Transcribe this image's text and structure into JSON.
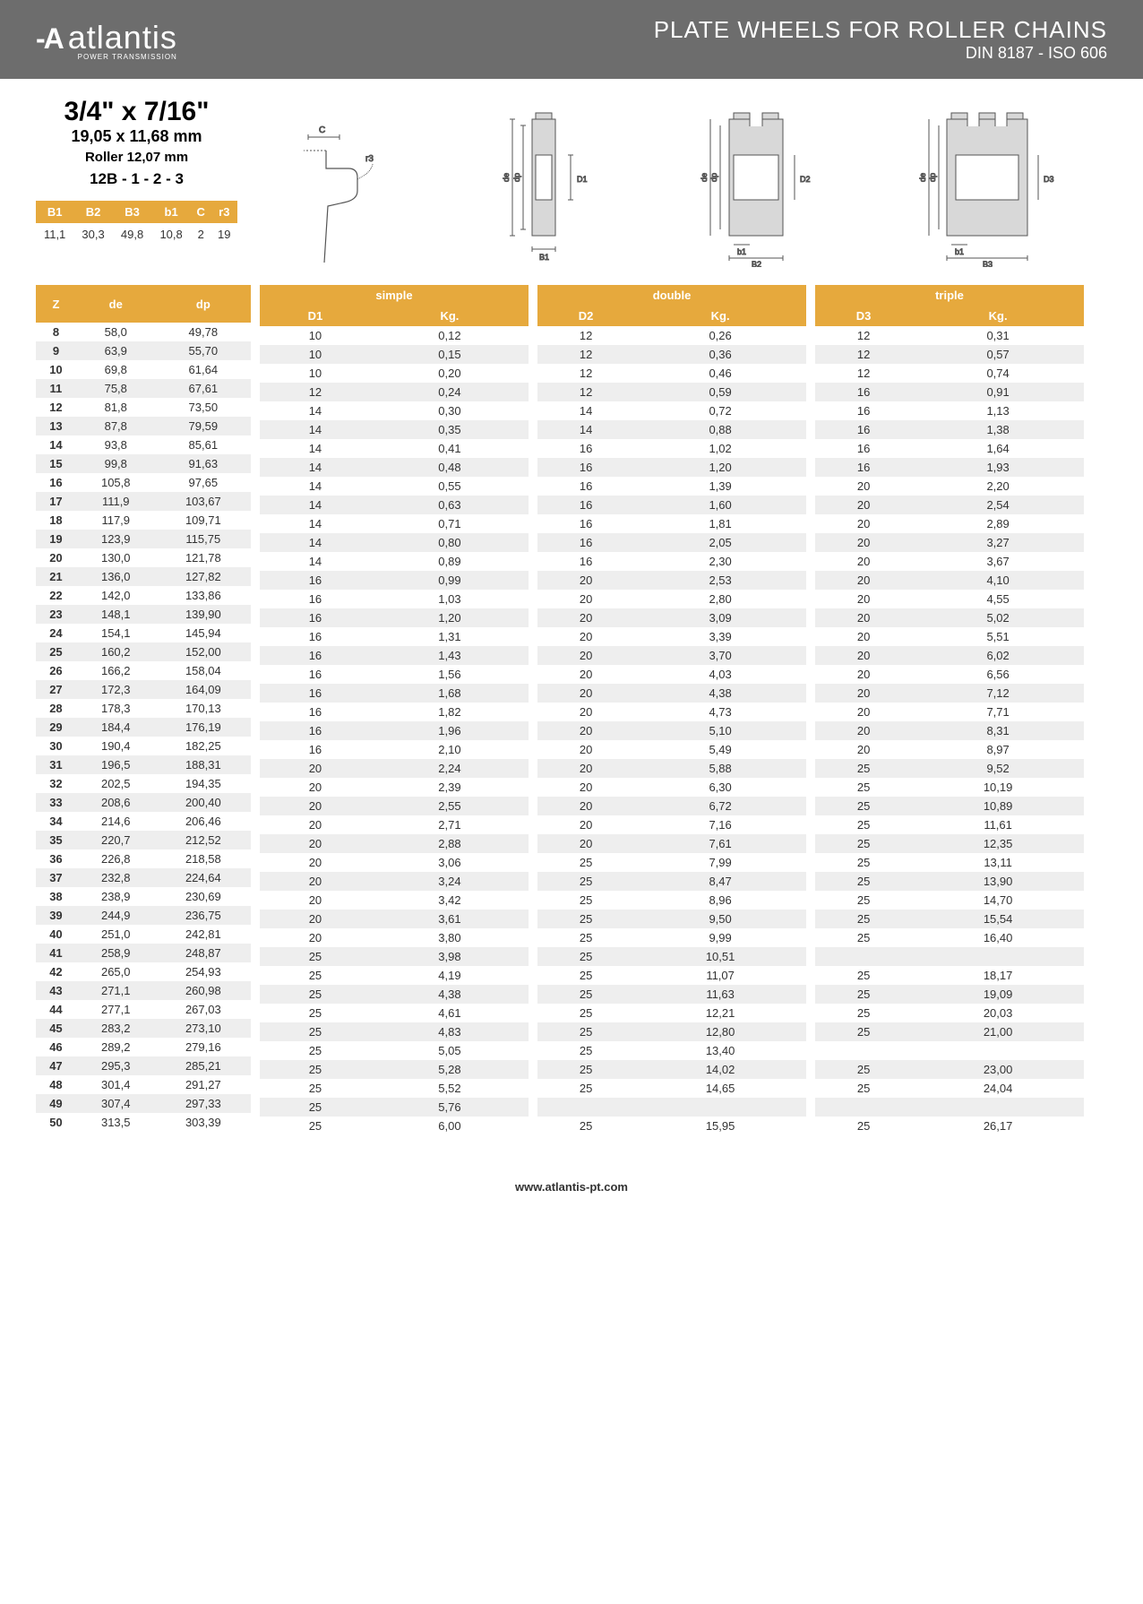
{
  "header": {
    "logo": "atlantis",
    "logo_sub": "POWER TRANSMISSION",
    "title": "PLATE WHEELS FOR ROLLER CHAINS",
    "subtitle": "DIN 8187 - ISO 606"
  },
  "spec": {
    "main": "3/4\" x 7/16\"",
    "mm": "19,05 x 11,68 mm",
    "roller": "Roller 12,07 mm",
    "code": "12B - 1 - 2 - 3",
    "params": {
      "headers": [
        "B1",
        "B2",
        "B3",
        "b1",
        "C",
        "r3"
      ],
      "values": [
        "11,1",
        "30,3",
        "49,8",
        "10,8",
        "2",
        "19"
      ]
    }
  },
  "columns": {
    "base": [
      "Z",
      "de",
      "dp"
    ],
    "simple": [
      "D1",
      "Kg."
    ],
    "double": [
      "D2",
      "Kg."
    ],
    "triple": [
      "D3",
      "Kg."
    ],
    "section_labels": {
      "simple": "simple",
      "double": "double",
      "triple": "triple"
    }
  },
  "rows": [
    {
      "Z": "8",
      "de": "58,0",
      "dp": "49,78",
      "D1": "10",
      "Kg1": "0,12",
      "D2": "12",
      "Kg2": "0,26",
      "D3": "12",
      "Kg3": "0,31"
    },
    {
      "Z": "9",
      "de": "63,9",
      "dp": "55,70",
      "D1": "10",
      "Kg1": "0,15",
      "D2": "12",
      "Kg2": "0,36",
      "D3": "12",
      "Kg3": "0,57"
    },
    {
      "Z": "10",
      "de": "69,8",
      "dp": "61,64",
      "D1": "10",
      "Kg1": "0,20",
      "D2": "12",
      "Kg2": "0,46",
      "D3": "12",
      "Kg3": "0,74"
    },
    {
      "Z": "11",
      "de": "75,8",
      "dp": "67,61",
      "D1": "12",
      "Kg1": "0,24",
      "D2": "12",
      "Kg2": "0,59",
      "D3": "16",
      "Kg3": "0,91"
    },
    {
      "Z": "12",
      "de": "81,8",
      "dp": "73,50",
      "D1": "14",
      "Kg1": "0,30",
      "D2": "14",
      "Kg2": "0,72",
      "D3": "16",
      "Kg3": "1,13"
    },
    {
      "Z": "13",
      "de": "87,8",
      "dp": "79,59",
      "D1": "14",
      "Kg1": "0,35",
      "D2": "14",
      "Kg2": "0,88",
      "D3": "16",
      "Kg3": "1,38"
    },
    {
      "Z": "14",
      "de": "93,8",
      "dp": "85,61",
      "D1": "14",
      "Kg1": "0,41",
      "D2": "16",
      "Kg2": "1,02",
      "D3": "16",
      "Kg3": "1,64"
    },
    {
      "Z": "15",
      "de": "99,8",
      "dp": "91,63",
      "D1": "14",
      "Kg1": "0,48",
      "D2": "16",
      "Kg2": "1,20",
      "D3": "16",
      "Kg3": "1,93"
    },
    {
      "Z": "16",
      "de": "105,8",
      "dp": "97,65",
      "D1": "14",
      "Kg1": "0,55",
      "D2": "16",
      "Kg2": "1,39",
      "D3": "20",
      "Kg3": "2,20"
    },
    {
      "Z": "17",
      "de": "111,9",
      "dp": "103,67",
      "D1": "14",
      "Kg1": "0,63",
      "D2": "16",
      "Kg2": "1,60",
      "D3": "20",
      "Kg3": "2,54"
    },
    {
      "Z": "18",
      "de": "117,9",
      "dp": "109,71",
      "D1": "14",
      "Kg1": "0,71",
      "D2": "16",
      "Kg2": "1,81",
      "D3": "20",
      "Kg3": "2,89"
    },
    {
      "Z": "19",
      "de": "123,9",
      "dp": "115,75",
      "D1": "14",
      "Kg1": "0,80",
      "D2": "16",
      "Kg2": "2,05",
      "D3": "20",
      "Kg3": "3,27"
    },
    {
      "Z": "20",
      "de": "130,0",
      "dp": "121,78",
      "D1": "14",
      "Kg1": "0,89",
      "D2": "16",
      "Kg2": "2,30",
      "D3": "20",
      "Kg3": "3,67"
    },
    {
      "Z": "21",
      "de": "136,0",
      "dp": "127,82",
      "D1": "16",
      "Kg1": "0,99",
      "D2": "20",
      "Kg2": "2,53",
      "D3": "20",
      "Kg3": "4,10"
    },
    {
      "Z": "22",
      "de": "142,0",
      "dp": "133,86",
      "D1": "16",
      "Kg1": "1,03",
      "D2": "20",
      "Kg2": "2,80",
      "D3": "20",
      "Kg3": "4,55"
    },
    {
      "Z": "23",
      "de": "148,1",
      "dp": "139,90",
      "D1": "16",
      "Kg1": "1,20",
      "D2": "20",
      "Kg2": "3,09",
      "D3": "20",
      "Kg3": "5,02"
    },
    {
      "Z": "24",
      "de": "154,1",
      "dp": "145,94",
      "D1": "16",
      "Kg1": "1,31",
      "D2": "20",
      "Kg2": "3,39",
      "D3": "20",
      "Kg3": "5,51"
    },
    {
      "Z": "25",
      "de": "160,2",
      "dp": "152,00",
      "D1": "16",
      "Kg1": "1,43",
      "D2": "20",
      "Kg2": "3,70",
      "D3": "20",
      "Kg3": "6,02"
    },
    {
      "Z": "26",
      "de": "166,2",
      "dp": "158,04",
      "D1": "16",
      "Kg1": "1,56",
      "D2": "20",
      "Kg2": "4,03",
      "D3": "20",
      "Kg3": "6,56"
    },
    {
      "Z": "27",
      "de": "172,3",
      "dp": "164,09",
      "D1": "16",
      "Kg1": "1,68",
      "D2": "20",
      "Kg2": "4,38",
      "D3": "20",
      "Kg3": "7,12"
    },
    {
      "Z": "28",
      "de": "178,3",
      "dp": "170,13",
      "D1": "16",
      "Kg1": "1,82",
      "D2": "20",
      "Kg2": "4,73",
      "D3": "20",
      "Kg3": "7,71"
    },
    {
      "Z": "29",
      "de": "184,4",
      "dp": "176,19",
      "D1": "16",
      "Kg1": "1,96",
      "D2": "20",
      "Kg2": "5,10",
      "D3": "20",
      "Kg3": "8,31"
    },
    {
      "Z": "30",
      "de": "190,4",
      "dp": "182,25",
      "D1": "16",
      "Kg1": "2,10",
      "D2": "20",
      "Kg2": "5,49",
      "D3": "20",
      "Kg3": "8,97"
    },
    {
      "Z": "31",
      "de": "196,5",
      "dp": "188,31",
      "D1": "20",
      "Kg1": "2,24",
      "D2": "20",
      "Kg2": "5,88",
      "D3": "25",
      "Kg3": "9,52"
    },
    {
      "Z": "32",
      "de": "202,5",
      "dp": "194,35",
      "D1": "20",
      "Kg1": "2,39",
      "D2": "20",
      "Kg2": "6,30",
      "D3": "25",
      "Kg3": "10,19"
    },
    {
      "Z": "33",
      "de": "208,6",
      "dp": "200,40",
      "D1": "20",
      "Kg1": "2,55",
      "D2": "20",
      "Kg2": "6,72",
      "D3": "25",
      "Kg3": "10,89"
    },
    {
      "Z": "34",
      "de": "214,6",
      "dp": "206,46",
      "D1": "20",
      "Kg1": "2,71",
      "D2": "20",
      "Kg2": "7,16",
      "D3": "25",
      "Kg3": "11,61"
    },
    {
      "Z": "35",
      "de": "220,7",
      "dp": "212,52",
      "D1": "20",
      "Kg1": "2,88",
      "D2": "20",
      "Kg2": "7,61",
      "D3": "25",
      "Kg3": "12,35"
    },
    {
      "Z": "36",
      "de": "226,8",
      "dp": "218,58",
      "D1": "20",
      "Kg1": "3,06",
      "D2": "25",
      "Kg2": "7,99",
      "D3": "25",
      "Kg3": "13,11"
    },
    {
      "Z": "37",
      "de": "232,8",
      "dp": "224,64",
      "D1": "20",
      "Kg1": "3,24",
      "D2": "25",
      "Kg2": "8,47",
      "D3": "25",
      "Kg3": "13,90"
    },
    {
      "Z": "38",
      "de": "238,9",
      "dp": "230,69",
      "D1": "20",
      "Kg1": "3,42",
      "D2": "25",
      "Kg2": "8,96",
      "D3": "25",
      "Kg3": "14,70"
    },
    {
      "Z": "39",
      "de": "244,9",
      "dp": "236,75",
      "D1": "20",
      "Kg1": "3,61",
      "D2": "25",
      "Kg2": "9,50",
      "D3": "25",
      "Kg3": "15,54"
    },
    {
      "Z": "40",
      "de": "251,0",
      "dp": "242,81",
      "D1": "20",
      "Kg1": "3,80",
      "D2": "25",
      "Kg2": "9,99",
      "D3": "25",
      "Kg3": "16,40"
    },
    {
      "Z": "41",
      "de": "258,9",
      "dp": "248,87",
      "D1": "25",
      "Kg1": "3,98",
      "D2": "25",
      "Kg2": "10,51",
      "D3": "",
      "Kg3": ""
    },
    {
      "Z": "42",
      "de": "265,0",
      "dp": "254,93",
      "D1": "25",
      "Kg1": "4,19",
      "D2": "25",
      "Kg2": "11,07",
      "D3": "25",
      "Kg3": "18,17"
    },
    {
      "Z": "43",
      "de": "271,1",
      "dp": "260,98",
      "D1": "25",
      "Kg1": "4,38",
      "D2": "25",
      "Kg2": "11,63",
      "D3": "25",
      "Kg3": "19,09"
    },
    {
      "Z": "44",
      "de": "277,1",
      "dp": "267,03",
      "D1": "25",
      "Kg1": "4,61",
      "D2": "25",
      "Kg2": "12,21",
      "D3": "25",
      "Kg3": "20,03"
    },
    {
      "Z": "45",
      "de": "283,2",
      "dp": "273,10",
      "D1": "25",
      "Kg1": "4,83",
      "D2": "25",
      "Kg2": "12,80",
      "D3": "25",
      "Kg3": "21,00"
    },
    {
      "Z": "46",
      "de": "289,2",
      "dp": "279,16",
      "D1": "25",
      "Kg1": "5,05",
      "D2": "25",
      "Kg2": "13,40",
      "D3": "",
      "Kg3": ""
    },
    {
      "Z": "47",
      "de": "295,3",
      "dp": "285,21",
      "D1": "25",
      "Kg1": "5,28",
      "D2": "25",
      "Kg2": "14,02",
      "D3": "25",
      "Kg3": "23,00"
    },
    {
      "Z": "48",
      "de": "301,4",
      "dp": "291,27",
      "D1": "25",
      "Kg1": "5,52",
      "D2": "25",
      "Kg2": "14,65",
      "D3": "25",
      "Kg3": "24,04"
    },
    {
      "Z": "49",
      "de": "307,4",
      "dp": "297,33",
      "D1": "25",
      "Kg1": "5,76",
      "D2": "",
      "Kg2": "",
      "D3": "",
      "Kg3": ""
    },
    {
      "Z": "50",
      "de": "313,5",
      "dp": "303,39",
      "D1": "25",
      "Kg1": "6,00",
      "D2": "25",
      "Kg2": "15,95",
      "D3": "25",
      "Kg3": "26,17"
    }
  ],
  "footer": "www.atlantis-pt.com",
  "colors": {
    "header_bg": "#6d6d6d",
    "accent": "#e6a93d",
    "row_even": "#eeeeee",
    "text": "#333333",
    "diagram_fill": "#d8d8d8",
    "diagram_stroke": "#555555"
  }
}
